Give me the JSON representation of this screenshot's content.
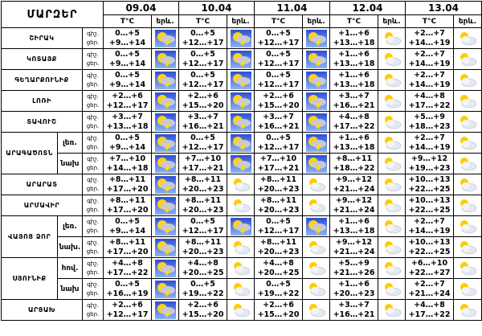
{
  "header": {
    "title": "ՄԱՐԶԵՐ",
    "dates": [
      "09.04",
      "10.04",
      "11.04",
      "12.04",
      "13.04"
    ],
    "temp_label": "T°C",
    "weather_label": "երև."
  },
  "period_labels": {
    "night": "գիշ.",
    "day": "ցեր."
  },
  "regions": [
    {
      "name": "ՇԻՐԱԿ",
      "forecast": [
        {
          "night": "0…+5",
          "day": "+9…+14"
        },
        {
          "night": "0…+5",
          "day": "+12…+17"
        },
        {
          "night": "0…+5",
          "day": "+12…+17"
        },
        {
          "night": "+1…+6",
          "day": "+13…+18"
        },
        {
          "night": "+2…+7",
          "day": "+14…+19"
        }
      ]
    },
    {
      "name": "ԿՈՏԱՅՔ",
      "forecast": [
        {
          "night": "0…+5",
          "day": "+9…+14"
        },
        {
          "night": "0…+5",
          "day": "+12…+17"
        },
        {
          "night": "0…+5",
          "day": "+12…+17"
        },
        {
          "night": "+1…+6",
          "day": "+13…+18"
        },
        {
          "night": "+2…+7",
          "day": "+14…+19"
        }
      ]
    },
    {
      "name": "ԳԵՂԱՐՔՈՒՆԻՔ",
      "forecast": [
        {
          "night": "0…+5",
          "day": "+9…+14"
        },
        {
          "night": "0…+5",
          "day": "+12…+17"
        },
        {
          "night": "0…+5",
          "day": "+12…+17"
        },
        {
          "night": "+1…+6",
          "day": "+13…+18"
        },
        {
          "night": "+2…+7",
          "day": "+14…+19"
        }
      ]
    },
    {
      "name": "ԼՈՌԻ",
      "forecast": [
        {
          "night": "+2…+6",
          "day": "+12…+17"
        },
        {
          "night": "+2…+6",
          "day": "+15…+20"
        },
        {
          "night": "+2…+6",
          "day": "+15…+20"
        },
        {
          "night": "+3…+7",
          "day": "+16…+21"
        },
        {
          "night": "+4…+8",
          "day": "+17…+22"
        }
      ]
    },
    {
      "name": "ՏԱՎՈՒՇ",
      "forecast": [
        {
          "night": "+3…+7",
          "day": "+13…+18"
        },
        {
          "night": "+3…+7",
          "day": "+16…+21"
        },
        {
          "night": "+3…+7",
          "day": "+16…+21"
        },
        {
          "night": "+4…+8",
          "day": "+17…+22"
        },
        {
          "night": "+5…+9",
          "day": "+18…+23"
        }
      ]
    },
    {
      "name": "ԱՐԱԳԱԾՈՏՆ",
      "zones": [
        {
          "name": "լեռ.",
          "forecast": [
            {
              "night": "0…+5",
              "day": "+9…+14"
            },
            {
              "night": "0…+5",
              "day": "+12…+17"
            },
            {
              "night": "0…+5",
              "day": "+12…+17"
            },
            {
              "night": "+1…+6",
              "day": "+13…+18"
            },
            {
              "night": "+2…+7",
              "day": "+14…+19"
            }
          ]
        },
        {
          "name": "նախ",
          "forecast": [
            {
              "night": "+7…+10",
              "day": "+14…+18"
            },
            {
              "night": "+7…+10",
              "day": "+17…+21"
            },
            {
              "night": "+7…+10",
              "day": "+17…+21"
            },
            {
              "night": "+8…+11",
              "day": "+18…+22"
            },
            {
              "night": "+9…+12",
              "day": "+19…+23"
            }
          ]
        }
      ]
    },
    {
      "name": "ԱՐԱՐԱՏ",
      "forecast": [
        {
          "night": "+8…+11",
          "day": "+17…+20"
        },
        {
          "night": "+8…+11",
          "day": "+20…+23"
        },
        {
          "night": "+8…+11",
          "day": "+20…+23"
        },
        {
          "night": "+9…+12",
          "day": "+21…+24"
        },
        {
          "night": "+10…+13",
          "day": "+22…+25"
        }
      ]
    },
    {
      "name": "ԱՐՄԱՎԻՐ",
      "forecast": [
        {
          "night": "+8…+11",
          "day": "+17…+20"
        },
        {
          "night": "+8…+11",
          "day": "+20…+23"
        },
        {
          "night": "+8…+11",
          "day": "+20…+23"
        },
        {
          "night": "+9…+12",
          "day": "+21…+24"
        },
        {
          "night": "+10…+13",
          "day": "+22…+25"
        }
      ]
    },
    {
      "name": "ՎԱՅՈՑ ՁՈՐ",
      "zones": [
        {
          "name": "լեռ.",
          "forecast": [
            {
              "night": "0…+5",
              "day": "+9…+14"
            },
            {
              "night": "0…+5",
              "day": "+12…+17"
            },
            {
              "night": "0…+5",
              "day": "+12…+17"
            },
            {
              "night": "+1…+6",
              "day": "+13…+18"
            },
            {
              "night": "+2…+7",
              "day": "+14…+19"
            }
          ]
        },
        {
          "name": "նախ.",
          "forecast": [
            {
              "night": "+8…+11",
              "day": "+17…+20"
            },
            {
              "night": "+8…+11",
              "day": "+20…+23"
            },
            {
              "night": "+8…+11",
              "day": "+20…+23"
            },
            {
              "night": "+9…+12",
              "day": "+21…+24"
            },
            {
              "night": "+10…+13",
              "day": "+22…+25"
            }
          ]
        }
      ]
    },
    {
      "name": "ՍՅՈՒՆԻՔ",
      "zones": [
        {
          "name": "հով.",
          "forecast": [
            {
              "night": "+4…+8",
              "day": "+17…+22"
            },
            {
              "night": "+4…+8",
              "day": "+20…+25"
            },
            {
              "night": "+4…+8",
              "day": "+20…+25"
            },
            {
              "night": "+5…+9",
              "day": "+21…+26"
            },
            {
              "night": "+6…+10",
              "day": "+22…+27"
            }
          ]
        },
        {
          "name": "նախ",
          "forecast": [
            {
              "night": "0…+5",
              "day": "+16…+19"
            },
            {
              "night": "0…+5",
              "day": "+19…+22"
            },
            {
              "night": "0…+5",
              "day": "+19…+22"
            },
            {
              "night": "+1…+6",
              "day": "+20…+23"
            },
            {
              "night": "+2…+7",
              "day": "+21…+24"
            }
          ]
        }
      ]
    },
    {
      "name": "ԱՐՑԱԽ",
      "forecast": [
        {
          "night": "+2…+6",
          "day": "+12…+17"
        },
        {
          "night": "+2…+6",
          "day": "+15…+20"
        },
        {
          "night": "+2…+6",
          "day": "+15…+20"
        },
        {
          "night": "+3…+7",
          "day": "+16…+21"
        },
        {
          "night": "+4…+8",
          "day": "+17…+22"
        }
      ]
    }
  ]
}
